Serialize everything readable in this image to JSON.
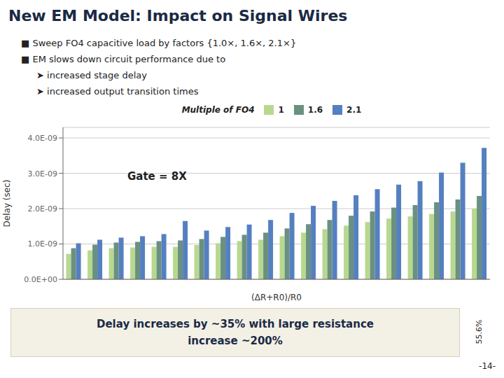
{
  "chart_data": {
    "type": "bar",
    "title": "New EM Model: Impact on Signal Wires",
    "annotations": [
      "■  Sweep FO4 capacitive load by factors {1.0×, 1.6×, 2.1×}",
      "■  EM slows down circuit performance due to",
      "➤ increased stage delay",
      "➤ increased output transition times",
      "Gate = 8X",
      "Delay increases by ~35% with large resistance",
      "increase ~200%",
      "55.6%",
      "-14-"
    ],
    "legend_title": "Multiple of FO4",
    "legend": "top",
    "xlabel": "(ΔR+R0)/R0",
    "ylabel": "Delay (sec)",
    "categories": [
      null,
      null,
      null,
      null,
      null,
      null,
      null,
      null,
      null,
      null,
      null,
      null,
      null,
      null,
      null,
      null,
      null,
      null,
      null,
      null
    ],
    "series": [
      {
        "name": "1",
        "color": "#B8D890",
        "values": [
          7.2e-10,
          8.2e-10,
          8.8e-10,
          9e-10,
          9.2e-10,
          9.2e-10,
          9.7e-10,
          1.02e-09,
          1.08e-09,
          1.12e-09,
          1.22e-09,
          1.32e-09,
          1.42e-09,
          1.52e-09,
          1.62e-09,
          1.72e-09,
          1.78e-09,
          1.85e-09,
          1.92e-09,
          2e-09
        ]
      },
      {
        "name": "1.6",
        "color": "#6A9080",
        "values": [
          8.8e-10,
          9.8e-10,
          1.04e-09,
          1.06e-09,
          1.08e-09,
          1.1e-09,
          1.14e-09,
          1.2e-09,
          1.26e-09,
          1.32e-09,
          1.44e-09,
          1.56e-09,
          1.68e-09,
          1.8e-09,
          1.92e-09,
          2.03e-09,
          2.1e-09,
          2.18e-09,
          2.26e-09,
          2.36e-09
        ]
      },
      {
        "name": "2.1",
        "color": "#5580C0",
        "values": [
          1.02e-09,
          1.12e-09,
          1.18e-09,
          1.22e-09,
          1.28e-09,
          1.65e-09,
          1.38e-09,
          1.48e-09,
          1.55e-09,
          1.68e-09,
          1.88e-09,
          2.08e-09,
          2.22e-09,
          2.38e-09,
          2.55e-09,
          2.68e-09,
          2.78e-09,
          3.02e-09,
          3.3e-09,
          3.72e-09
        ]
      }
    ],
    "ylim": [
      0,
      4.3e-09
    ],
    "yticks": [
      {
        "value": 0,
        "label": "0.0E+00"
      },
      {
        "value": 1e-09,
        "label": "1.0E-09"
      },
      {
        "value": 2e-09,
        "label": "2.0E-09"
      },
      {
        "value": 3e-09,
        "label": "3.0E-09"
      },
      {
        "value": 4e-09,
        "label": "4.0E-09"
      }
    ],
    "grid": true,
    "tick_labels": "y"
  }
}
